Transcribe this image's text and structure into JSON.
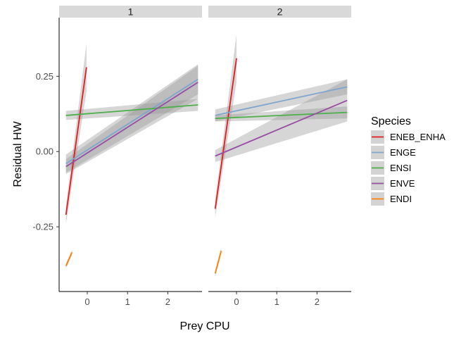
{
  "chart_data": {
    "type": "line",
    "xlabel": "Prey CPU",
    "ylabel": "Residual HW",
    "xlim": [
      -0.7,
      2.85
    ],
    "ylim": [
      -0.465,
      0.445
    ],
    "x_ticks": [
      0,
      1,
      2
    ],
    "x_tick_labels": [
      "0",
      "1",
      "2"
    ],
    "y_ticks": [
      -0.25,
      0,
      0.25
    ],
    "y_tick_labels": [
      "-0.25",
      "0.00",
      "0.25"
    ],
    "legend": {
      "title": "Species",
      "position": "right",
      "entries": [
        {
          "name": "ENEB_ENHA",
          "color": "#e41a1c"
        },
        {
          "name": "ENGE",
          "color": "#7ea6cd"
        },
        {
          "name": "ENSI",
          "color": "#4daf4a"
        },
        {
          "name": "ENVE",
          "color": "#984ea3"
        },
        {
          "name": "ENDI",
          "color": "#ff7f00"
        }
      ]
    },
    "panels": [
      {
        "strip": "1",
        "series": [
          {
            "name": "ENEB_ENHA",
            "color": "#e41a1c",
            "x": [
              -0.53,
              -0.02
            ],
            "y": [
              -0.21,
              0.28
            ],
            "ci_half": [
              0.03,
              0.08
            ]
          },
          {
            "name": "ENGE",
            "color": "#7ea6cd",
            "x": [
              -0.53,
              2.75
            ],
            "y": [
              -0.04,
              0.24
            ],
            "ci_half": [
              0.03,
              0.05
            ]
          },
          {
            "name": "ENSI",
            "color": "#4daf4a",
            "x": [
              -0.53,
              2.75
            ],
            "y": [
              0.12,
              0.155
            ],
            "ci_half": [
              0.015,
              0.02
            ]
          },
          {
            "name": "ENVE",
            "color": "#984ea3",
            "x": [
              -0.53,
              2.75
            ],
            "y": [
              -0.05,
              0.23
            ],
            "ci_half": [
              0.025,
              0.055
            ]
          },
          {
            "name": "ENDI",
            "color": "#ff7f00",
            "x": [
              -0.53,
              -0.38
            ],
            "y": [
              -0.38,
              -0.335
            ],
            "ci_half": [
              0.008,
              0.008
            ]
          }
        ]
      },
      {
        "strip": "2",
        "series": [
          {
            "name": "ENEB_ENHA",
            "color": "#e41a1c",
            "x": [
              -0.53,
              0.0
            ],
            "y": [
              -0.19,
              0.31
            ],
            "ci_half": [
              0.03,
              0.08
            ]
          },
          {
            "name": "ENGE",
            "color": "#7ea6cd",
            "x": [
              -0.53,
              2.75
            ],
            "y": [
              0.12,
              0.215
            ],
            "ci_half": [
              0.02,
              0.025
            ]
          },
          {
            "name": "ENSI",
            "color": "#4daf4a",
            "x": [
              -0.53,
              2.75
            ],
            "y": [
              0.11,
              0.13
            ],
            "ci_half": [
              0.01,
              0.02
            ]
          },
          {
            "name": "ENVE",
            "color": "#984ea3",
            "x": [
              -0.53,
              2.75
            ],
            "y": [
              -0.015,
              0.17
            ],
            "ci_half": [
              0.02,
              0.07
            ]
          },
          {
            "name": "ENDI",
            "color": "#ff7f00",
            "x": [
              -0.53,
              -0.38
            ],
            "y": [
              -0.405,
              -0.33
            ],
            "ci_half": [
              0.01,
              0.01
            ]
          }
        ]
      }
    ]
  }
}
